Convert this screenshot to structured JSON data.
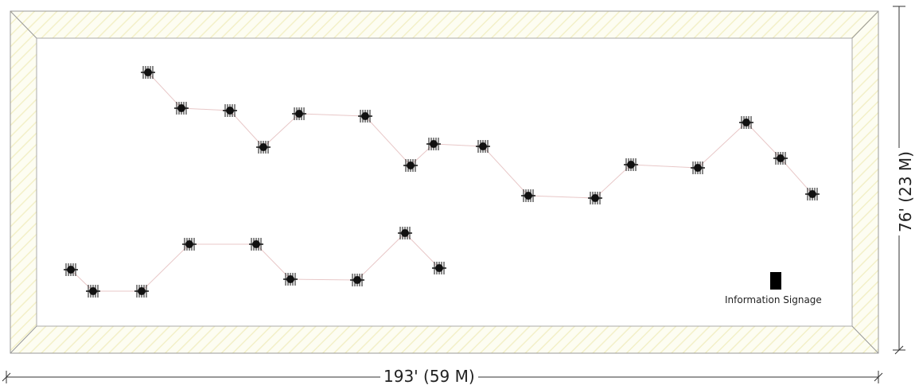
{
  "dimensions": {
    "width_label": "193' (59 M)",
    "height_label": "76' (23 M)"
  },
  "signage": {
    "label": "Information Signage"
  },
  "colors": {
    "border_fill": "#fdfdf2",
    "border_hatch": "#f3f0c8",
    "border_line": "#999999",
    "path_line": "#e8c8c8",
    "station": "#111111"
  }
}
